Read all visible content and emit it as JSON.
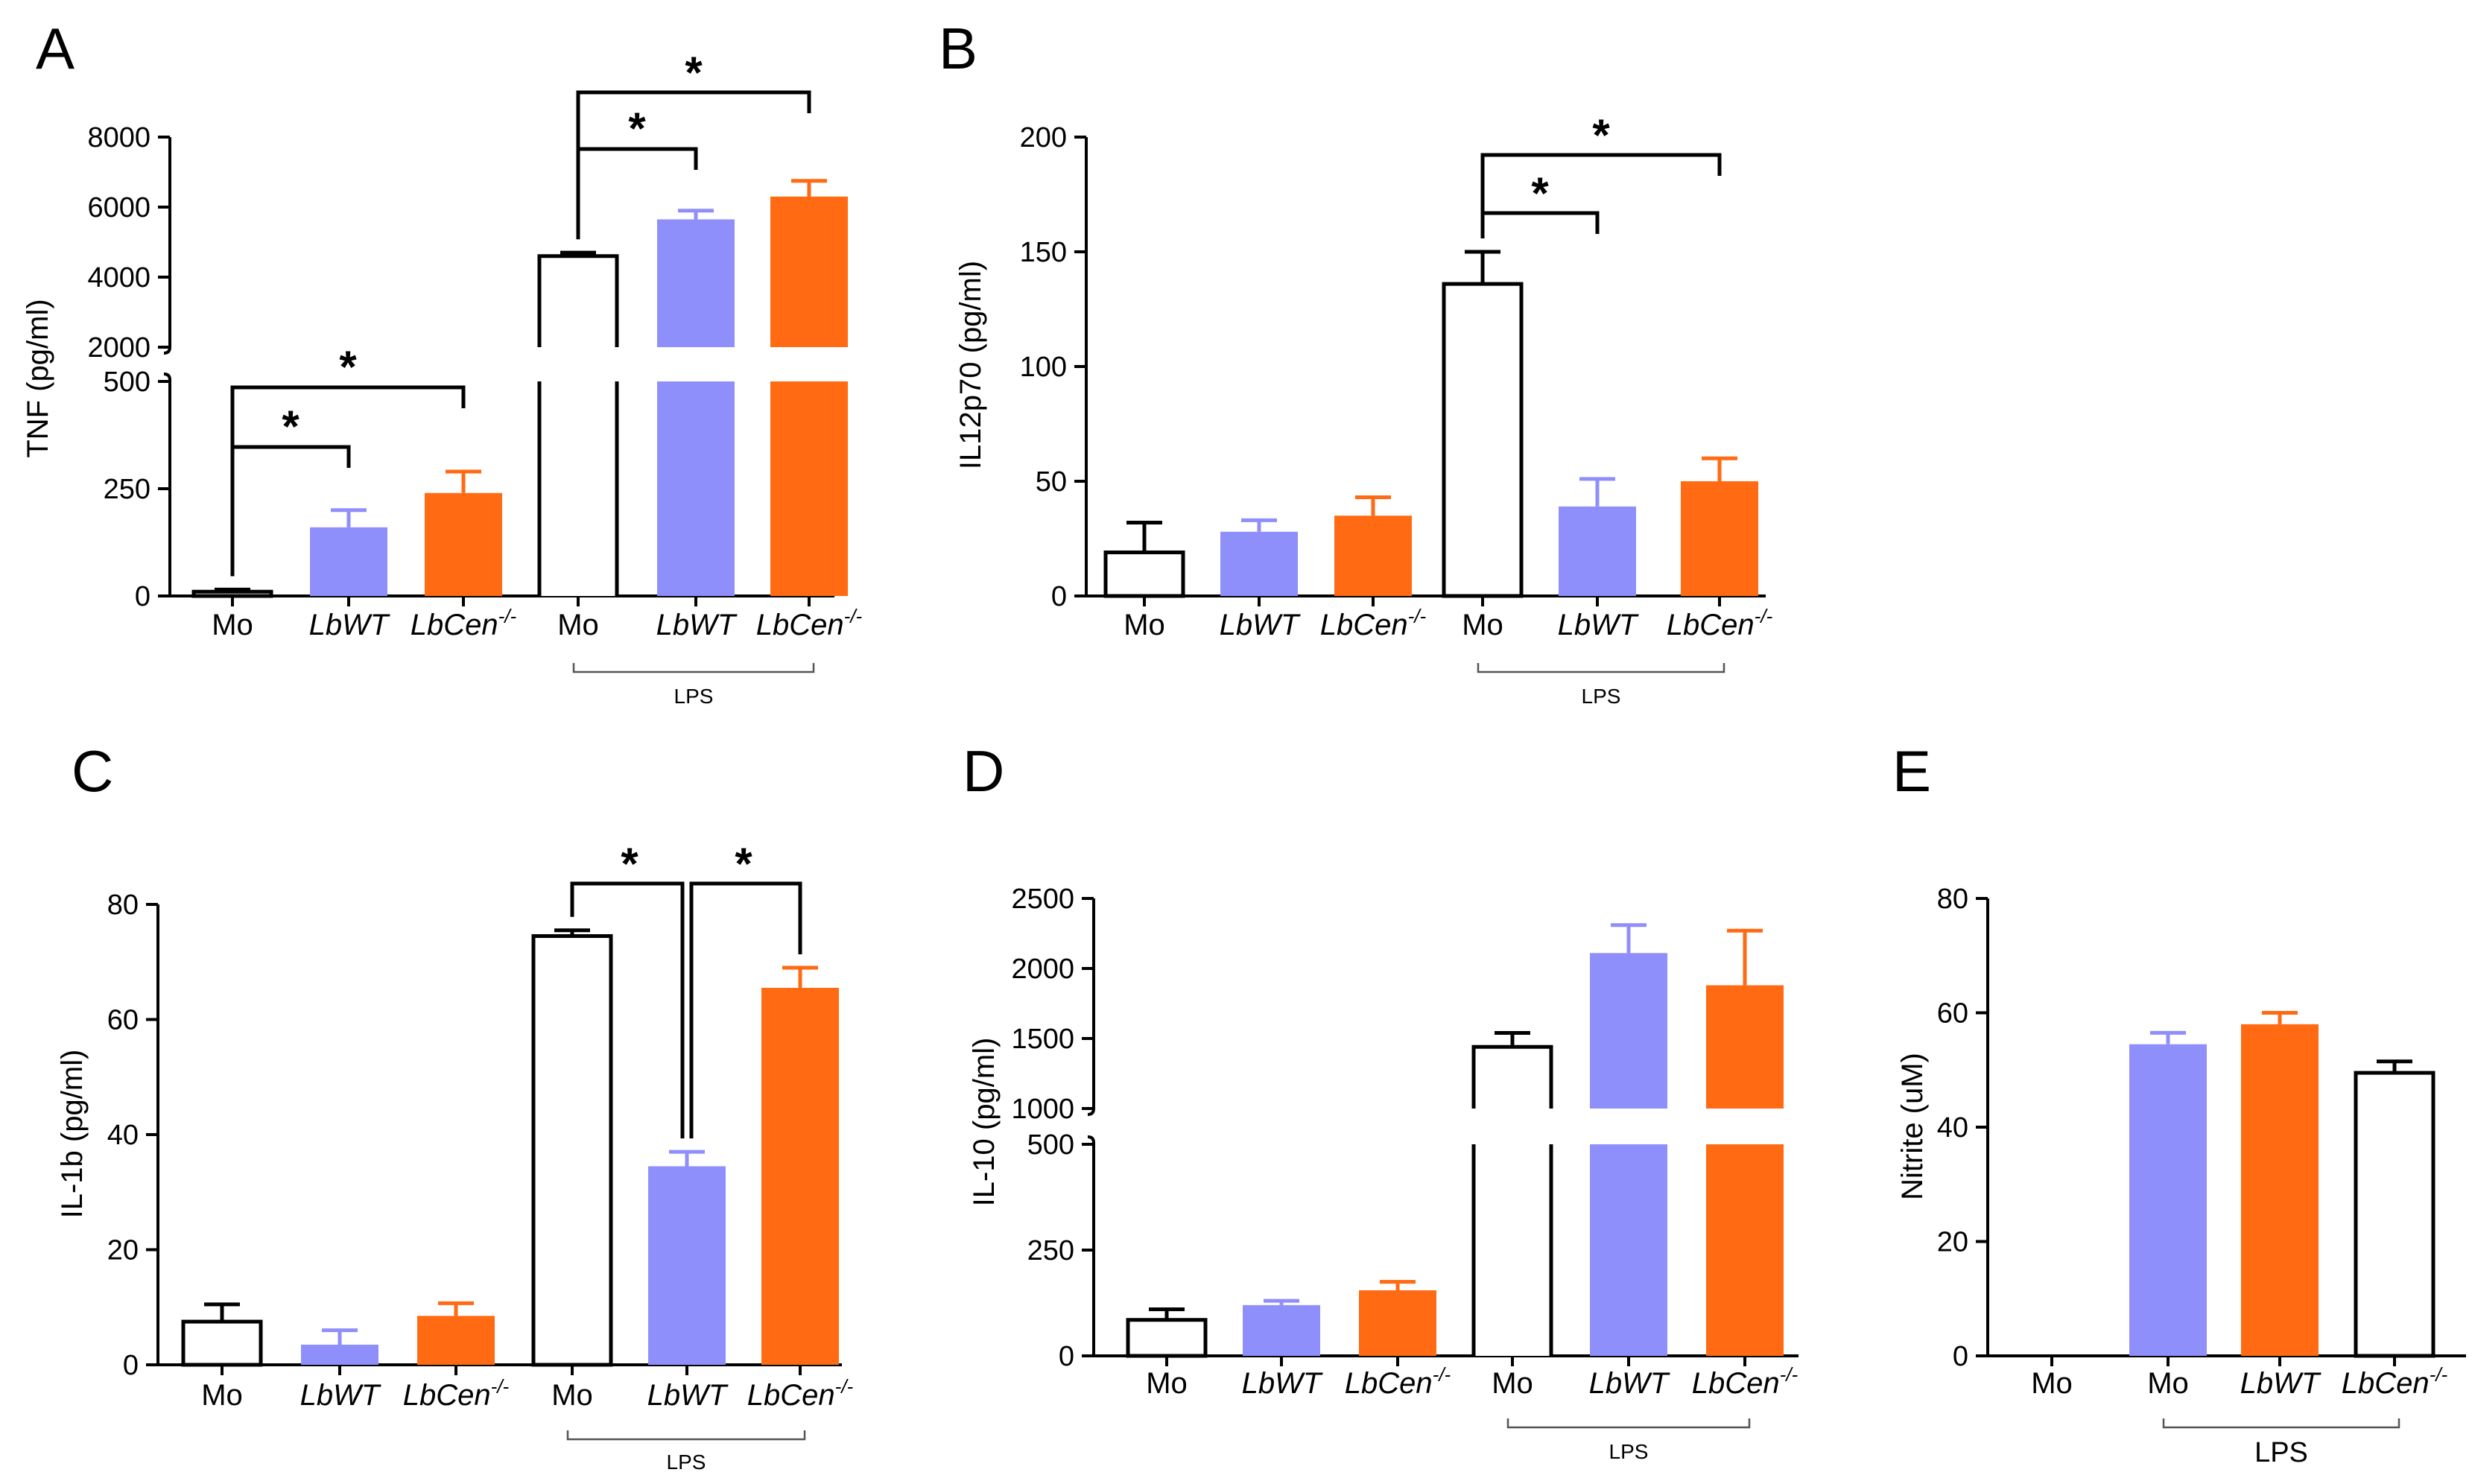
{
  "colors": {
    "control": "#ffffff",
    "lbwt": "#8f8ffb",
    "lbcen": "#ff6a13",
    "axis": "#000000"
  },
  "chart_data": [
    {
      "panel": "A",
      "type": "bar",
      "ylabel": "TNF (pg/ml)",
      "broken_axis": true,
      "lower_ticks": [
        "0",
        "250",
        "500"
      ],
      "upper_ticks": [
        "2000",
        "4000",
        "6000",
        "8000"
      ],
      "lower_range": [
        0,
        500
      ],
      "upper_range": [
        2000,
        8000
      ],
      "categories": [
        {
          "label": "Mo",
          "italic": false
        },
        {
          "label": "LbWT",
          "italic": true
        },
        {
          "label": "LbCen",
          "sup": "-/-",
          "italic": true
        },
        {
          "label": "Mo",
          "italic": false
        },
        {
          "label": "LbWT",
          "italic": true
        },
        {
          "label": "LbCen",
          "sup": "-/-",
          "italic": true
        }
      ],
      "values": [
        10,
        160,
        240,
        4600,
        5650,
        6300
      ],
      "errors": [
        5,
        40,
        50,
        100,
        250,
        450
      ],
      "fills": [
        "control",
        "lbwt",
        "lbcen",
        "control",
        "lbwt",
        "lbcen"
      ],
      "group_label": {
        "text": "LPS",
        "from": 3,
        "to": 5
      },
      "significance": [
        {
          "from": 0,
          "to": 1,
          "mark": "*"
        },
        {
          "from": 0,
          "to": 2,
          "mark": "*"
        },
        {
          "from": 3,
          "to": 4,
          "mark": "*"
        },
        {
          "from": 3,
          "to": 5,
          "mark": "*"
        }
      ]
    },
    {
      "panel": "B",
      "type": "bar",
      "ylabel": "IL12p70 (pg/ml)",
      "broken_axis": false,
      "ticks": [
        "0",
        "50",
        "100",
        "150",
        "200"
      ],
      "ylim": [
        0,
        200
      ],
      "categories": [
        {
          "label": "Mo",
          "italic": false
        },
        {
          "label": "LbWT",
          "italic": true
        },
        {
          "label": "LbCen",
          "sup": "-/-",
          "italic": true
        },
        {
          "label": "Mo",
          "italic": false
        },
        {
          "label": "LbWT",
          "italic": true
        },
        {
          "label": "LbCen",
          "sup": "-/-",
          "italic": true
        }
      ],
      "values": [
        19,
        28,
        35,
        136,
        39,
        50
      ],
      "errors": [
        13,
        5,
        8,
        14,
        12,
        10
      ],
      "fills": [
        "control",
        "lbwt",
        "lbcen",
        "control",
        "lbwt",
        "lbcen"
      ],
      "group_label": {
        "text": "LPS",
        "from": 3,
        "to": 5
      },
      "significance": [
        {
          "from": 3,
          "to": 4,
          "mark": "*"
        },
        {
          "from": 3,
          "to": 5,
          "mark": "*"
        }
      ]
    },
    {
      "panel": "C",
      "type": "bar",
      "ylabel": "IL-1b (pg/ml)",
      "broken_axis": false,
      "ticks": [
        "0",
        "20",
        "40",
        "60",
        "80"
      ],
      "ylim": [
        0,
        80
      ],
      "categories": [
        {
          "label": "Mo",
          "italic": false
        },
        {
          "label": "LbWT",
          "italic": true
        },
        {
          "label": "LbCen",
          "sup": "-/-",
          "italic": true
        },
        {
          "label": "Mo",
          "italic": false
        },
        {
          "label": "LbWT",
          "italic": true
        },
        {
          "label": "LbCen",
          "sup": "-/-",
          "italic": true
        }
      ],
      "values": [
        7.5,
        3.5,
        8.5,
        74.5,
        34.5,
        65.5
      ],
      "errors": [
        3,
        2.5,
        2.2,
        1,
        2.5,
        3.5
      ],
      "fills": [
        "control",
        "lbwt",
        "lbcen",
        "control",
        "lbwt",
        "lbcen"
      ],
      "group_label": {
        "text": "LPS",
        "from": 3,
        "to": 5
      },
      "significance": [
        {
          "from": 3,
          "to": 4,
          "mark": "*"
        },
        {
          "from": 4,
          "to": 5,
          "mark": "*"
        }
      ]
    },
    {
      "panel": "D",
      "type": "bar",
      "ylabel": "IL-10 (pg/ml)",
      "broken_axis": true,
      "lower_ticks": [
        "0",
        "250",
        "500"
      ],
      "upper_ticks": [
        "1000",
        "1500",
        "2000",
        "2500"
      ],
      "lower_range": [
        0,
        500
      ],
      "upper_range": [
        1000,
        2500
      ],
      "categories": [
        {
          "label": "Mo",
          "italic": false
        },
        {
          "label": "LbWT",
          "italic": true
        },
        {
          "label": "LbCen",
          "sup": "-/-",
          "italic": true
        },
        {
          "label": "Mo",
          "italic": false
        },
        {
          "label": "LbWT",
          "italic": true
        },
        {
          "label": "LbCen",
          "sup": "-/-",
          "italic": true
        }
      ],
      "values": [
        85,
        120,
        155,
        1440,
        2110,
        1880
      ],
      "errors": [
        25,
        10,
        20,
        100,
        200,
        390
      ],
      "fills": [
        "control",
        "lbwt",
        "lbcen",
        "control",
        "lbwt",
        "lbcen"
      ],
      "group_label": {
        "text": "LPS",
        "from": 3,
        "to": 5
      },
      "significance": []
    },
    {
      "panel": "E",
      "type": "bar",
      "ylabel": "Nitrite (uM)",
      "broken_axis": false,
      "ticks": [
        "0",
        "20",
        "40",
        "60",
        "80"
      ],
      "ylim": [
        0,
        80
      ],
      "categories": [
        {
          "label": "Mo",
          "italic": false
        },
        {
          "label": "Mo",
          "italic": false
        },
        {
          "label": "LbWT",
          "italic": true
        },
        {
          "label": "LbCen",
          "sup": "-/-",
          "italic": true
        }
      ],
      "values": [
        0,
        54.5,
        58,
        49.5
      ],
      "errors": [
        0,
        2,
        2,
        2
      ],
      "fills": [
        "control",
        "lbwt",
        "lbcen",
        "control"
      ],
      "group_label": {
        "text": "LPS",
        "from": 1,
        "to": 3
      },
      "significance": []
    }
  ]
}
